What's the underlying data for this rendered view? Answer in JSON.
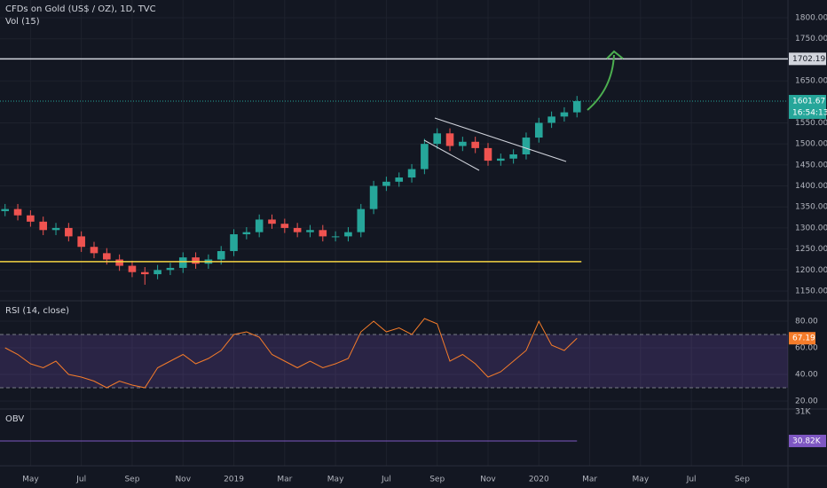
{
  "chart_data": [
    {
      "type": "candlestick",
      "title": "CFDs on Gold (US$ / OZ), 1D, TVC",
      "subtitle": "Vol (15)",
      "up_color": "#26a69a",
      "down_color": "#ef5350",
      "x": [
        3,
        3.5,
        4,
        4.5,
        5,
        5.5,
        6,
        6.5,
        7,
        7.5,
        8,
        8.5,
        9,
        9.5,
        10,
        10.5,
        11,
        11.5,
        12,
        12.5,
        13,
        13.5,
        14,
        14.5,
        15,
        15.5,
        16,
        16.5,
        17,
        17.5,
        18,
        18.5,
        19,
        19.5,
        20,
        20.5,
        21,
        21.5,
        22,
        22.5,
        23,
        23.5,
        24,
        24.5,
        25,
        25.5
      ],
      "open": [
        1340,
        1345,
        1330,
        1315,
        1295,
        1300,
        1280,
        1255,
        1240,
        1225,
        1210,
        1195,
        1190,
        1200,
        1205,
        1230,
        1215,
        1225,
        1245,
        1285,
        1290,
        1320,
        1310,
        1300,
        1290,
        1295,
        1280,
        1280,
        1290,
        1345,
        1400,
        1410,
        1420,
        1440,
        1500,
        1525,
        1495,
        1505,
        1490,
        1460,
        1465,
        1475,
        1515,
        1550,
        1565,
        1575
      ],
      "high": [
        1357,
        1357,
        1342,
        1327,
        1312,
        1312,
        1292,
        1267,
        1252,
        1237,
        1222,
        1207,
        1212,
        1217,
        1242,
        1242,
        1237,
        1257,
        1297,
        1302,
        1332,
        1332,
        1322,
        1312,
        1307,
        1307,
        1292,
        1302,
        1357,
        1412,
        1422,
        1432,
        1452,
        1512,
        1537,
        1537,
        1517,
        1517,
        1502,
        1477,
        1487,
        1527,
        1562,
        1577,
        1587,
        1614
      ],
      "low": [
        1328,
        1318,
        1303,
        1283,
        1283,
        1268,
        1243,
        1228,
        1213,
        1198,
        1183,
        1165,
        1178,
        1188,
        1193,
        1203,
        1203,
        1213,
        1233,
        1273,
        1278,
        1298,
        1288,
        1278,
        1278,
        1268,
        1268,
        1268,
        1278,
        1333,
        1388,
        1398,
        1408,
        1428,
        1488,
        1483,
        1483,
        1478,
        1448,
        1448,
        1453,
        1463,
        1503,
        1538,
        1553,
        1563
      ],
      "close": [
        1345,
        1330,
        1315,
        1295,
        1300,
        1280,
        1255,
        1240,
        1225,
        1210,
        1195,
        1190,
        1200,
        1205,
        1230,
        1215,
        1225,
        1245,
        1285,
        1290,
        1320,
        1310,
        1300,
        1290,
        1295,
        1280,
        1280,
        1290,
        1345,
        1400,
        1410,
        1420,
        1440,
        1500,
        1525,
        1495,
        1505,
        1490,
        1460,
        1465,
        1475,
        1515,
        1550,
        1565,
        1575,
        1601.67
      ],
      "xlim": [
        2.8,
        33.8
      ],
      "xticks": [
        {
          "value": 4,
          "label": "May"
        },
        {
          "value": 6,
          "label": "Jul"
        },
        {
          "value": 8,
          "label": "Sep"
        },
        {
          "value": 10,
          "label": "Nov"
        },
        {
          "value": 12,
          "label": "2019"
        },
        {
          "value": 14,
          "label": "Mar"
        },
        {
          "value": 16,
          "label": "May"
        },
        {
          "value": 18,
          "label": "Jul"
        },
        {
          "value": 20,
          "label": "Sep"
        },
        {
          "value": 22,
          "label": "Nov"
        },
        {
          "value": 24,
          "label": "2020"
        },
        {
          "value": 26,
          "label": "Mar"
        },
        {
          "value": 28,
          "label": "May"
        },
        {
          "value": 30,
          "label": "Jul"
        },
        {
          "value": 32,
          "label": "Sep"
        }
      ],
      "ylim": [
        1128.9,
        1842.2
      ],
      "yticks": [
        {
          "value": 1150,
          "label": "1150.00"
        },
        {
          "value": 1200,
          "label": "1200.00"
        },
        {
          "value": 1250,
          "label": "1250.00"
        },
        {
          "value": 1300,
          "label": "1300.00"
        },
        {
          "value": 1350,
          "label": "1350.00"
        },
        {
          "value": 1400,
          "label": "1400.00"
        },
        {
          "value": 1450,
          "label": "1450.00"
        },
        {
          "value": 1500,
          "label": "1500.00"
        },
        {
          "value": 1550,
          "label": "1550.00"
        },
        {
          "value": 1650,
          "label": "1650.00"
        },
        {
          "value": 1750,
          "label": "1750.00"
        },
        {
          "value": 1800,
          "label": "1800.00"
        }
      ],
      "resistance": 1702.19,
      "support": 1220,
      "countdown": "16:54:13",
      "grid": true
    },
    {
      "type": "line",
      "title": "RSI (14, close)",
      "color": "#f57c2a",
      "band_color": "rgba(126,87,194,0.22)",
      "x": [
        3,
        3.5,
        4,
        4.5,
        5,
        5.5,
        6,
        6.5,
        7,
        7.5,
        8,
        8.5,
        9,
        9.5,
        10,
        10.5,
        11,
        11.5,
        12,
        12.5,
        13,
        13.5,
        14,
        14.5,
        15,
        15.5,
        16,
        16.5,
        17,
        17.5,
        18,
        18.5,
        19,
        19.5,
        20,
        20.5,
        21,
        21.5,
        22,
        22.5,
        23,
        23.5,
        24,
        24.5,
        25,
        25.5
      ],
      "values": [
        60,
        55,
        48,
        45,
        50,
        40,
        38,
        35,
        30,
        35,
        32,
        30,
        45,
        50,
        55,
        48,
        52,
        58,
        70,
        72,
        68,
        55,
        50,
        45,
        50,
        45,
        48,
        52,
        72,
        80,
        72,
        75,
        70,
        82,
        78,
        50,
        55,
        48,
        38,
        42,
        50,
        58,
        80,
        62,
        58,
        67.19
      ],
      "bands": [
        30,
        70
      ],
      "ylim": [
        14.67,
        94.67
      ],
      "yticks": [
        {
          "value": 20,
          "label": "20.00"
        },
        {
          "value": 40,
          "label": "40.00"
        },
        {
          "value": 60,
          "label": "60.00"
        },
        {
          "value": 80,
          "label": "80.00"
        }
      ]
    },
    {
      "type": "level",
      "title": "OBV",
      "color": "#7e57c2",
      "value": 30820,
      "value_label": "30.82K",
      "ylim": [
        30667,
        31011
      ],
      "yticks": [
        {
          "value": 31000,
          "label": "31K"
        }
      ]
    }
  ]
}
